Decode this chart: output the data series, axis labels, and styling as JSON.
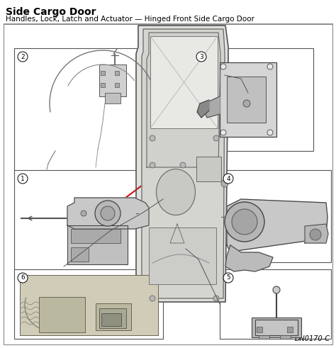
{
  "title": "Side Cargo Door",
  "subtitle": "Handles, Lock, Latch and Actuator — Hinged Front Side Cargo Door",
  "watermark": "DN0170-C",
  "bg_color": "#ffffff",
  "title_fontsize": 10,
  "subtitle_fontsize": 7.5,
  "watermark_fontsize": 7,
  "line_color_red": "#cc1111",
  "box_bg": "#ffffff",
  "box_edge": "#555555",
  "diagram_bg": "#efefef",
  "door_fill": "#e8e8e8",
  "door_inner": "#d8d8d8"
}
